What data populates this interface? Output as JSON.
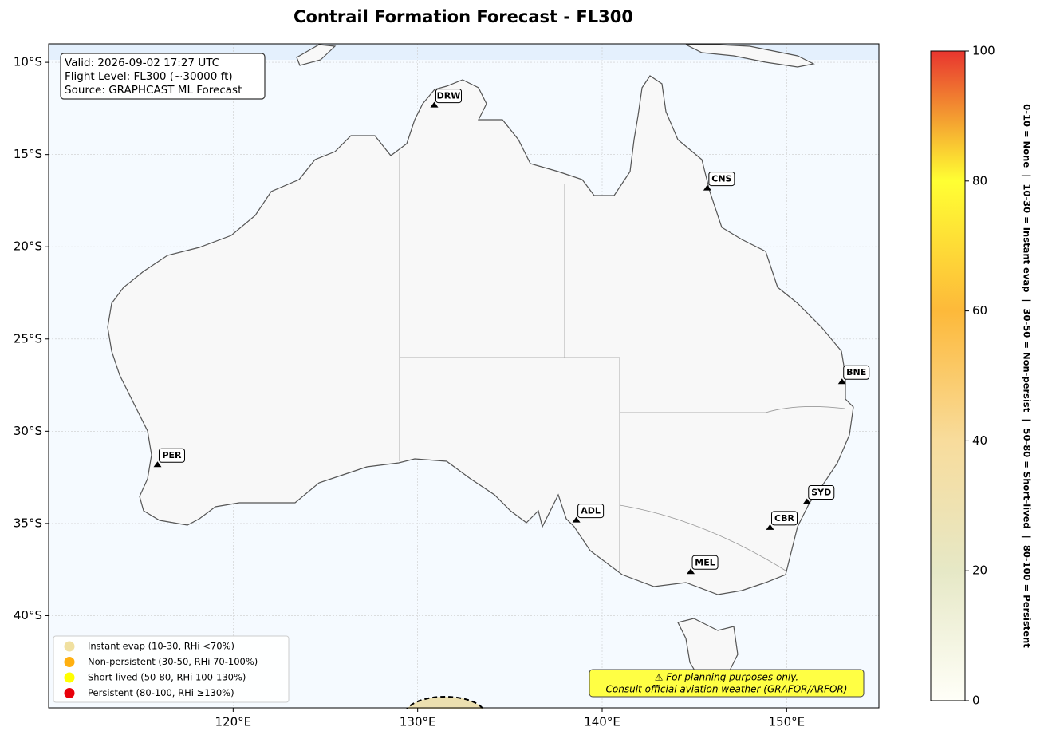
{
  "title": "Contrail Formation Forecast - FL300",
  "map": {
    "xlim": [
      110,
      155
    ],
    "ylim": [
      -45,
      -9
    ],
    "xticks": [
      {
        "value": 120,
        "label": "120°E"
      },
      {
        "value": 130,
        "label": "130°E"
      },
      {
        "value": 140,
        "label": "140°E"
      },
      {
        "value": 150,
        "label": "150°E"
      }
    ],
    "yticks": [
      {
        "value": -10,
        "label": "10°S"
      },
      {
        "value": -15,
        "label": "15°S"
      },
      {
        "value": -20,
        "label": "20°S"
      },
      {
        "value": -25,
        "label": "25°S"
      },
      {
        "value": -30,
        "label": "30°S"
      },
      {
        "value": -35,
        "label": "35°S"
      },
      {
        "value": -40,
        "label": "40°S"
      }
    ],
    "grid": true
  },
  "info_box": [
    "Valid: 2026-09-02 17:27 UTC",
    "Flight Level: FL300 (~30000 ft)",
    "Source: GRAPHCAST ML Forecast"
  ],
  "stations": [
    {
      "code": "DRW",
      "lon": 130.9,
      "lat": -12.4
    },
    {
      "code": "CNS",
      "lon": 145.7,
      "lat": -16.9
    },
    {
      "code": "BNE",
      "lon": 153.0,
      "lat": -27.4
    },
    {
      "code": "PER",
      "lon": 115.9,
      "lat": -31.9
    },
    {
      "code": "ADL",
      "lon": 138.6,
      "lat": -34.9
    },
    {
      "code": "SYD",
      "lon": 151.1,
      "lat": -33.9
    },
    {
      "code": "CBR",
      "lon": 149.1,
      "lat": -35.3
    },
    {
      "code": "MEL",
      "lon": 144.8,
      "lat": -37.7
    }
  ],
  "legend": [
    {
      "label": "Instant evap (10-30, RHi <70%)",
      "color": "#f0e0a0"
    },
    {
      "label": "Non-persistent (30-50, RHi 70-100%)",
      "color": "#ffb010"
    },
    {
      "label": "Short-lived (50-80, RHi 100-130%)",
      "color": "#ffff00"
    },
    {
      "label": "Persistent (80-100, RHi ≥130%)",
      "color": "#e8000a"
    }
  ],
  "colorbar": {
    "ylim": [
      0,
      100
    ],
    "yticks": [
      0,
      20,
      40,
      60,
      80,
      100
    ],
    "colors": [
      "#fffff8",
      "#e6e8c6",
      "#f8dc9c",
      "#fdb93a",
      "#ffff33",
      "#e8352f"
    ],
    "label": "0-10 = None  |  10-30 = Instant evap  |  30-50 = Non-persist  |  50-80 = Short-lived  |  80-100 = Persistent"
  },
  "disclaimer": [
    "⚠ For planning purposes only.",
    "Consult official aviation weather (GRAFOR/ARFOR)"
  ]
}
